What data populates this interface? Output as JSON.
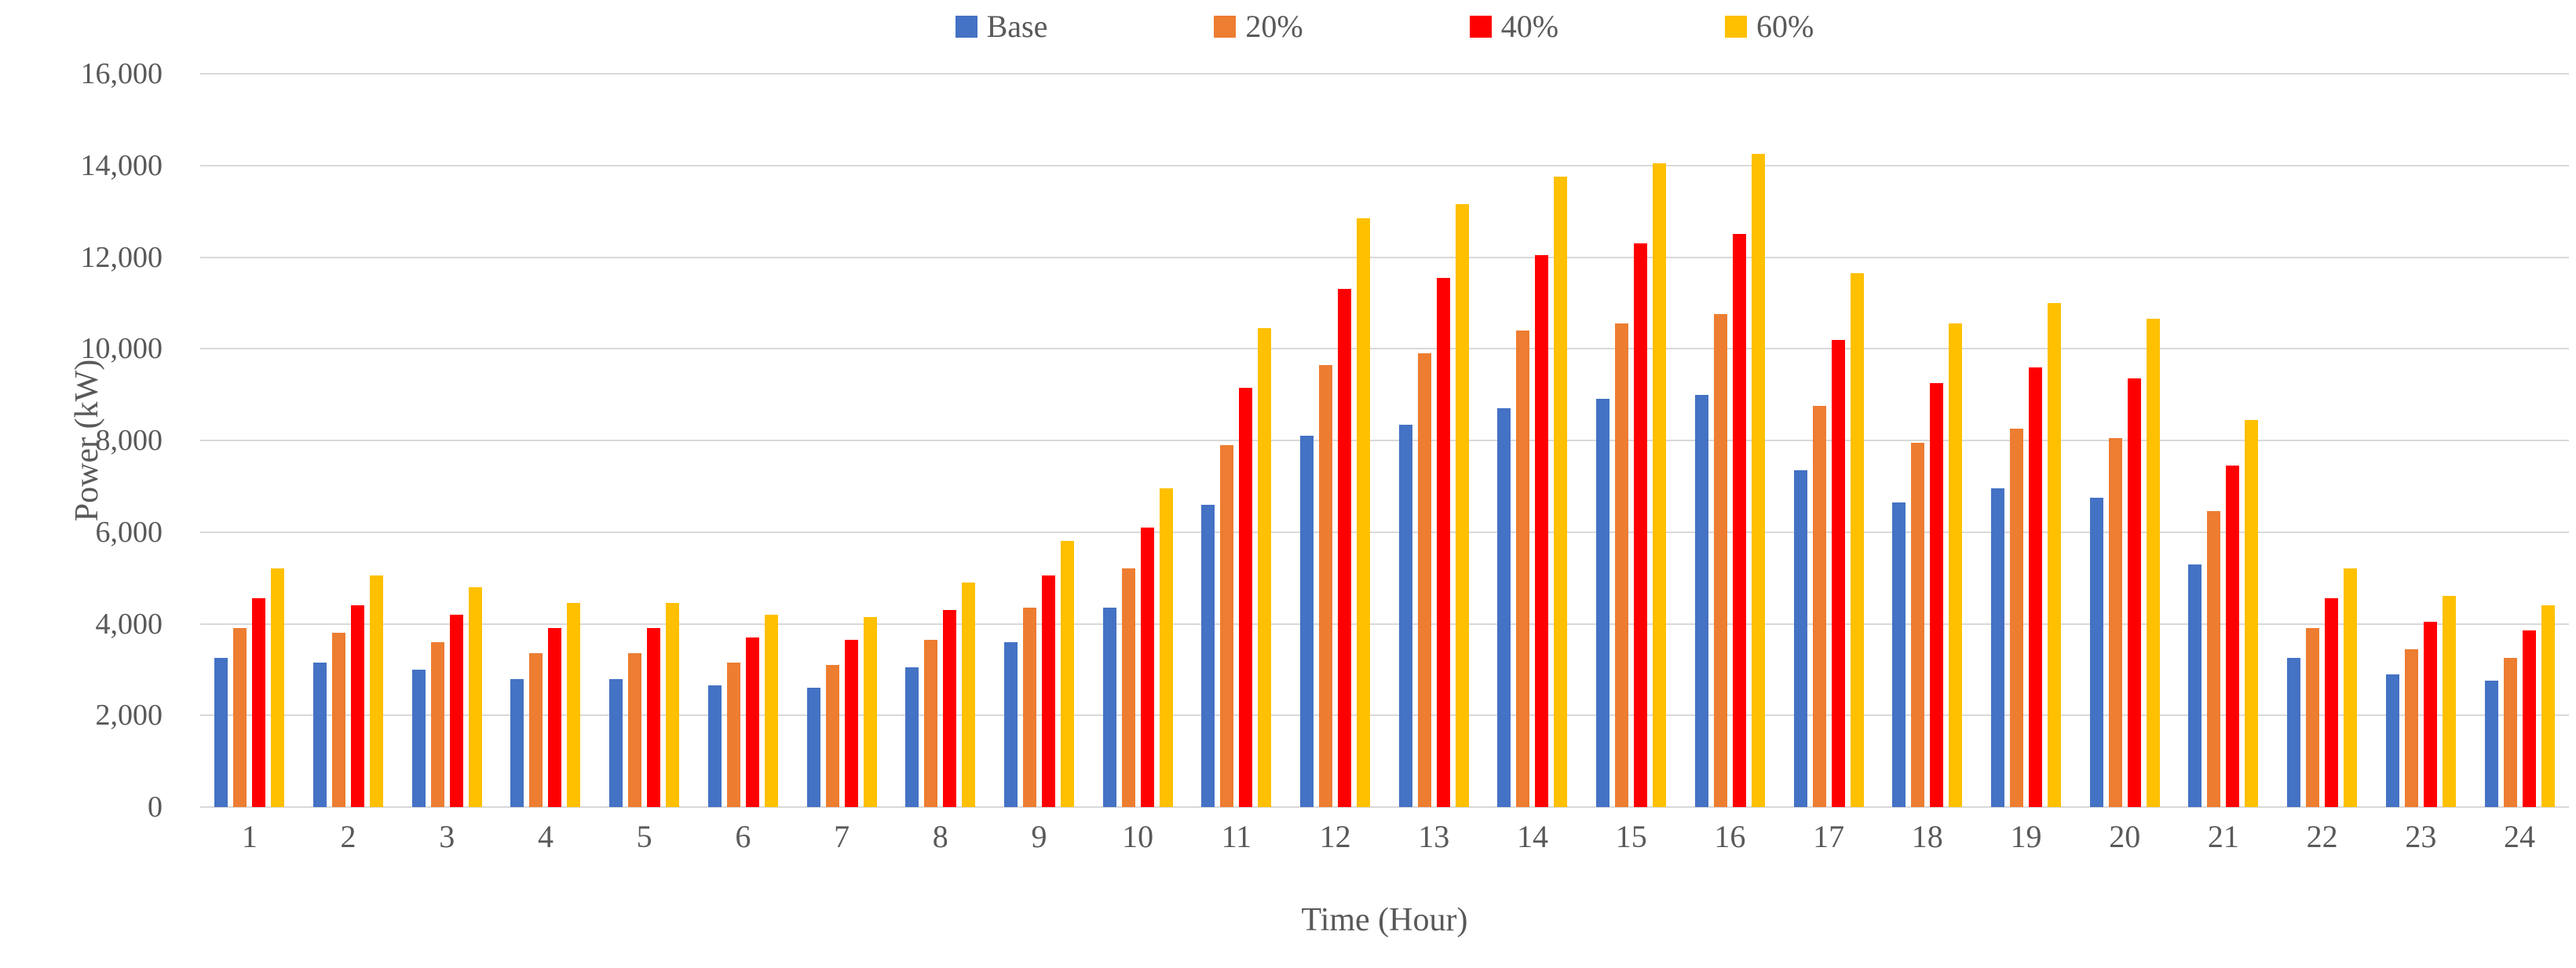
{
  "chart_data": {
    "type": "bar",
    "title": "",
    "xlabel": "Time (Hour)",
    "ylabel": "Power (kW)",
    "categories": [
      "1",
      "2",
      "3",
      "4",
      "5",
      "6",
      "7",
      "8",
      "9",
      "10",
      "11",
      "12",
      "13",
      "14",
      "15",
      "16",
      "17",
      "18",
      "19",
      "20",
      "21",
      "22",
      "23",
      "24"
    ],
    "series": [
      {
        "name": "Base",
        "color": "#4472C4",
        "values": [
          3250,
          3150,
          3000,
          2800,
          2800,
          2650,
          2600,
          3050,
          3600,
          4350,
          6600,
          8100,
          8350,
          8700,
          8900,
          9000,
          7350,
          6650,
          6950,
          6750,
          5300,
          3250,
          2900,
          2750
        ]
      },
      {
        "name": "20%",
        "color": "#ED7D31",
        "values": [
          3900,
          3800,
          3600,
          3350,
          3350,
          3150,
          3100,
          3650,
          4350,
          5200,
          7900,
          9650,
          9900,
          10400,
          10550,
          10750,
          8750,
          7950,
          8250,
          8050,
          6450,
          3900,
          3450,
          3250
        ]
      },
      {
        "name": "40%",
        "color": "#FF0000",
        "values": [
          4550,
          4400,
          4200,
          3900,
          3900,
          3700,
          3650,
          4300,
          5050,
          6100,
          9150,
          11300,
          11550,
          12050,
          12300,
          12500,
          10200,
          9250,
          9600,
          9350,
          7450,
          4550,
          4050,
          3850
        ]
      },
      {
        "name": "60%",
        "color": "#FFC000",
        "values": [
          5200,
          5050,
          4800,
          4450,
          4450,
          4200,
          4150,
          4900,
          5800,
          6950,
          10450,
          12850,
          13150,
          13750,
          14050,
          14250,
          11650,
          10550,
          11000,
          10650,
          8450,
          5200,
          4600,
          4400
        ]
      }
    ],
    "ylim": [
      0,
      16000
    ],
    "ytick_step": 2000,
    "ytick_labels": [
      "0",
      "2,000",
      "4,000",
      "6,000",
      "8,000",
      "10,000",
      "12,000",
      "14,000",
      "16,000"
    ],
    "grid": true,
    "legend_position": "top-center"
  },
  "colors": {
    "gridline": "#D9D9D9",
    "axis_line": "#D9D9D9",
    "text": "#595959",
    "background": "#FFFFFF"
  }
}
